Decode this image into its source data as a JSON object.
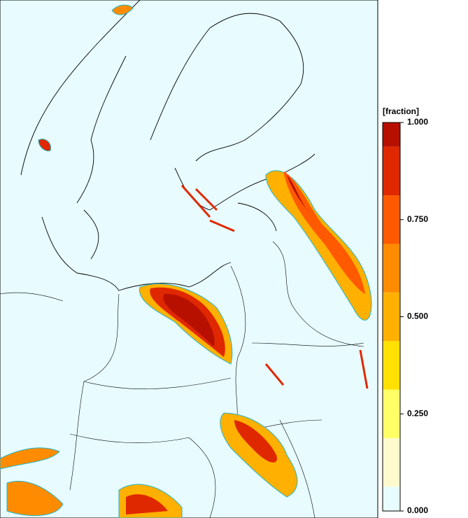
{
  "colorbar": {
    "title": "[fraction]",
    "lim": [
      0,
      1
    ],
    "ticks": [
      {
        "value": 1,
        "label": "1.000"
      },
      {
        "value": 0.75,
        "label": "0.750"
      },
      {
        "value": 0.5,
        "label": "0.500"
      },
      {
        "value": 0.25,
        "label": "0.250"
      },
      {
        "value": 0,
        "label": "0.000"
      }
    ],
    "levels": [
      0,
      0.125,
      0.25,
      0.375,
      0.5,
      0.625,
      0.75,
      0.875,
      1
    ],
    "colors": [
      "#e8fcff",
      "#fffacd",
      "#ffff66",
      "#ffe000",
      "#ffb000",
      "#ff8c00",
      "#ff5a00",
      "#e02800",
      "#b81000"
    ]
  }
}
